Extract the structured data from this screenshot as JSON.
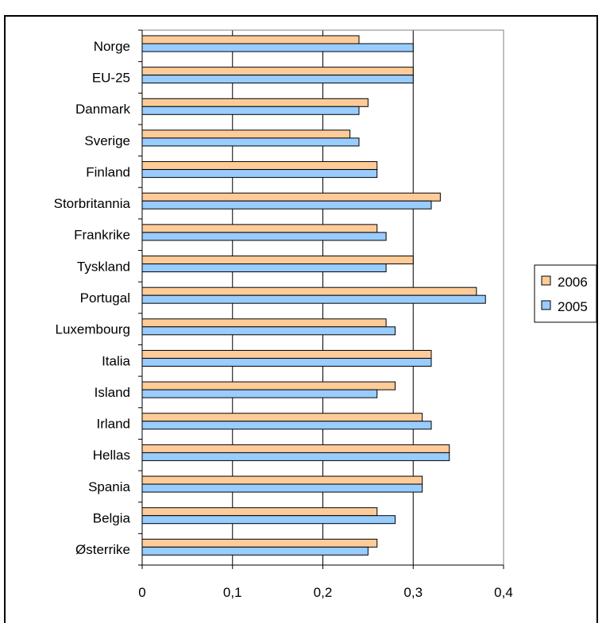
{
  "chart_data": {
    "type": "bar",
    "orientation": "horizontal",
    "categories": [
      "Norge",
      "EU-25",
      "Danmark",
      "Sverige",
      "Finland",
      "Storbritannia",
      "Frankrike",
      "Tyskland",
      "Portugal",
      "Luxembourg",
      "Italia",
      "Island",
      "Irland",
      "Hellas",
      "Spania",
      "Belgia",
      "Østerrike"
    ],
    "series": [
      {
        "name": "2006",
        "color": "#FFCC99",
        "values": [
          0.24,
          0.3,
          0.25,
          0.23,
          0.26,
          0.33,
          0.26,
          0.3,
          0.37,
          0.27,
          0.32,
          0.28,
          0.31,
          0.34,
          0.31,
          0.26,
          0.26
        ]
      },
      {
        "name": "2005",
        "color": "#99CCFF",
        "values": [
          0.3,
          0.3,
          0.24,
          0.24,
          0.26,
          0.32,
          0.27,
          0.27,
          0.38,
          0.28,
          0.32,
          0.26,
          0.32,
          0.34,
          0.31,
          0.28,
          0.25
        ]
      }
    ],
    "xlim": [
      0,
      0.4
    ],
    "x_ticks": [
      "0",
      "0,1",
      "0,2",
      "0,3",
      "0,4"
    ],
    "x_tick_values": [
      0,
      0.1,
      0.2,
      0.3,
      0.4
    ],
    "grid": "vertical",
    "legend_position": "right",
    "title": "",
    "xlabel": "",
    "ylabel": ""
  }
}
